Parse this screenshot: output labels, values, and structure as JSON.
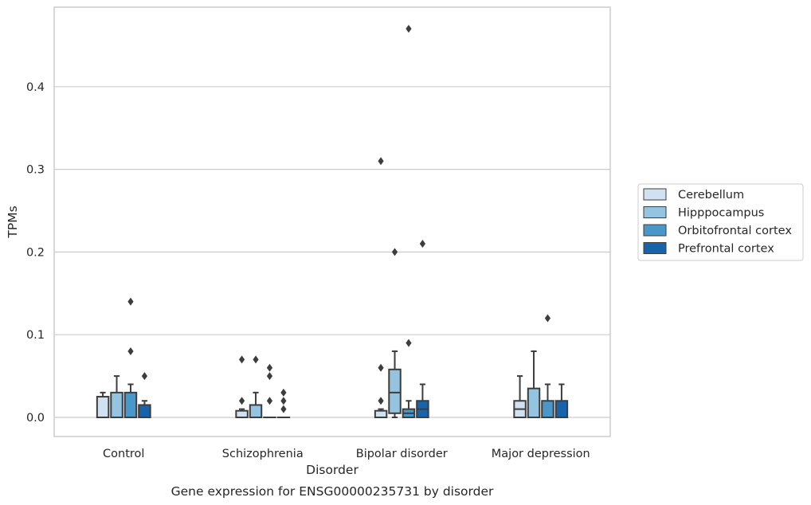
{
  "chart_data": {
    "type": "boxplot",
    "title": "",
    "caption": "Gene expression for ENSG00000235731 by disorder",
    "xlabel": "Disorder",
    "ylabel": "TPMs",
    "ylim": [
      -0.023,
      0.493
    ],
    "yticks": [
      0.0,
      0.1,
      0.2,
      0.3,
      0.4
    ],
    "ytick_labels": [
      "0.0",
      "0.1",
      "0.2",
      "0.3",
      "0.4"
    ],
    "grid": "horizontal",
    "legend_position": "right",
    "categories": [
      "Control",
      "Schizophrenia",
      "Bipolar disorder",
      "Major depression"
    ],
    "series": [
      {
        "name": "Cerebellum",
        "color": "#d0e1f2",
        "boxes": [
          {
            "q1": 0.0,
            "median": 0.0,
            "q3": 0.025,
            "whislo": 0.0,
            "whishi": 0.03,
            "fliers": []
          },
          {
            "q1": 0.0,
            "median": 0.0,
            "q3": 0.008,
            "whislo": 0.0,
            "whishi": 0.01,
            "fliers": [
              0.07,
              0.02
            ]
          },
          {
            "q1": 0.0,
            "median": 0.0,
            "q3": 0.008,
            "whislo": 0.0,
            "whishi": 0.01,
            "fliers": [
              0.31,
              0.06,
              0.02
            ]
          },
          {
            "q1": 0.0,
            "median": 0.01,
            "q3": 0.02,
            "whislo": 0.0,
            "whishi": 0.05,
            "fliers": []
          }
        ]
      },
      {
        "name": "Hipppocampus",
        "color": "#94c4df",
        "boxes": [
          {
            "q1": 0.0,
            "median": 0.0,
            "q3": 0.03,
            "whislo": 0.0,
            "whishi": 0.05,
            "fliers": []
          },
          {
            "q1": 0.0,
            "median": 0.0,
            "q3": 0.015,
            "whislo": 0.0,
            "whishi": 0.03,
            "fliers": [
              0.07
            ]
          },
          {
            "q1": 0.005,
            "median": 0.03,
            "q3": 0.058,
            "whislo": 0.0,
            "whishi": 0.08,
            "fliers": [
              0.2
            ]
          },
          {
            "q1": 0.0,
            "median": 0.0,
            "q3": 0.035,
            "whislo": 0.0,
            "whishi": 0.08,
            "fliers": []
          }
        ]
      },
      {
        "name": "Orbitofrontal cortex",
        "color": "#4a98c9",
        "boxes": [
          {
            "q1": 0.0,
            "median": 0.0,
            "q3": 0.03,
            "whislo": 0.0,
            "whishi": 0.04,
            "fliers": [
              0.14,
              0.08
            ]
          },
          {
            "q1": 0.0,
            "median": 0.0,
            "q3": 0.0,
            "whislo": 0.0,
            "whishi": 0.0,
            "fliers": [
              0.06,
              0.05,
              0.02
            ]
          },
          {
            "q1": 0.0,
            "median": 0.005,
            "q3": 0.01,
            "whislo": 0.0,
            "whishi": 0.02,
            "fliers": [
              0.47,
              0.09
            ]
          },
          {
            "q1": 0.0,
            "median": 0.0,
            "q3": 0.02,
            "whislo": 0.0,
            "whishi": 0.04,
            "fliers": [
              0.12
            ]
          }
        ]
      },
      {
        "name": "Prefrontal cortex",
        "color": "#1764ab",
        "boxes": [
          {
            "q1": 0.0,
            "median": 0.0,
            "q3": 0.015,
            "whislo": 0.0,
            "whishi": 0.02,
            "fliers": [
              0.05
            ]
          },
          {
            "q1": 0.0,
            "median": 0.0,
            "q3": 0.0,
            "whislo": 0.0,
            "whishi": 0.0,
            "fliers": [
              0.03,
              0.02,
              0.01
            ]
          },
          {
            "q1": 0.0,
            "median": 0.01,
            "q3": 0.02,
            "whislo": 0.0,
            "whishi": 0.04,
            "fliers": [
              0.21
            ]
          },
          {
            "q1": 0.0,
            "median": 0.0,
            "q3": 0.02,
            "whislo": 0.0,
            "whishi": 0.04,
            "fliers": []
          }
        ]
      }
    ],
    "style": {
      "background": "#ffffff",
      "grid_color": "#cccccc",
      "spine_color": "#cccccc",
      "line_color": "#3d3d3d",
      "flier_color": "#3d3d3d"
    }
  }
}
